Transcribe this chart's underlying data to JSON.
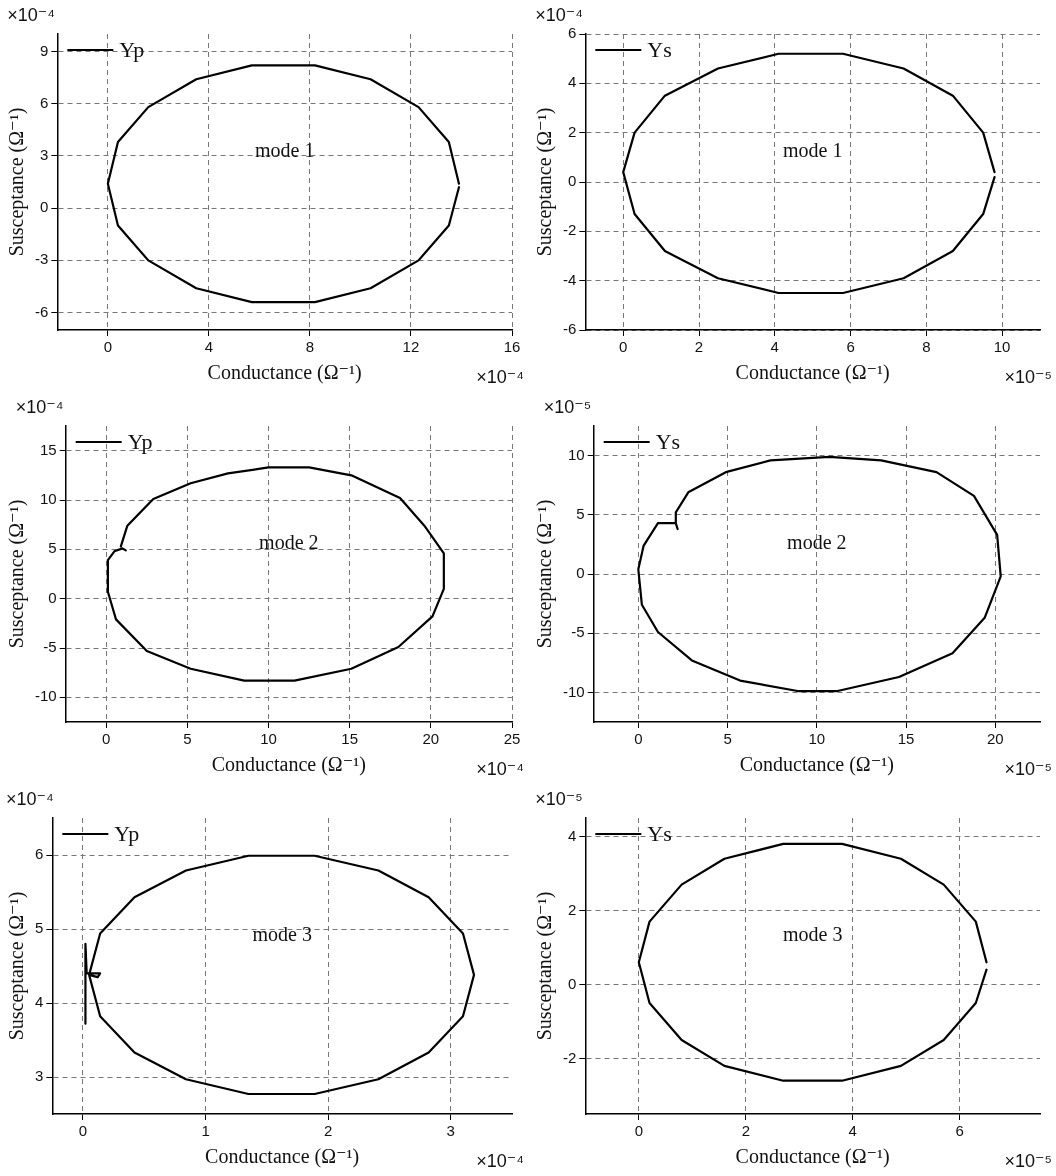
{
  "chart_data": [
    {
      "type": "line",
      "xlabel": "Conductance (Ω⁻¹)",
      "ylabel": "Susceptance (Ω⁻¹)",
      "annotations": [
        "×10⁻⁴",
        "×10⁻⁴",
        "mode 1"
      ],
      "xlim": [
        -2,
        16
      ],
      "ylim": [
        -7,
        10
      ],
      "xticks": [
        0,
        4,
        8,
        12,
        16
      ],
      "yticks": [
        -6,
        -3,
        0,
        3,
        6,
        9
      ],
      "grid": true,
      "legend": "top left",
      "series": [
        {
          "name": "Yp",
          "color": "#000000",
          "x": [
            13.9,
            13.5,
            12.3,
            10.4,
            8.2,
            5.7,
            3.5,
            1.6,
            0.4,
            0,
            0.4,
            1.6,
            3.5,
            5.7,
            8.2,
            10.4,
            12.3,
            13.5,
            13.9
          ],
          "values": [
            1.4,
            3.8,
            5.8,
            7.4,
            8.2,
            8.2,
            7.4,
            5.8,
            3.8,
            1.4,
            -1.0,
            -3.0,
            -4.6,
            -5.4,
            -5.4,
            -4.6,
            -3.0,
            -1.0,
            1.2
          ]
        }
      ]
    },
    {
      "type": "line",
      "xlabel": "Conductance (Ω⁻¹)",
      "ylabel": "Susceptance (Ω⁻¹)",
      "annotations": [
        "×10⁻⁴",
        "×10⁻⁵",
        "mode 1"
      ],
      "xlim": [
        -1,
        11
      ],
      "ylim": [
        -6,
        6
      ],
      "xticks": [
        0,
        2,
        4,
        6,
        8,
        10
      ],
      "yticks": [
        -6,
        -4,
        -2,
        0,
        2,
        4,
        6
      ],
      "grid": true,
      "legend": "top left",
      "series": [
        {
          "name": "Ys",
          "color": "#000000",
          "x": [
            9.8,
            9.5,
            8.7,
            7.4,
            5.8,
            4.1,
            2.5,
            1.1,
            0.3,
            0,
            0.3,
            1.1,
            2.5,
            4.1,
            5.8,
            7.4,
            8.7,
            9.5,
            9.8
          ],
          "values": [
            0.4,
            2.0,
            3.5,
            4.6,
            5.2,
            5.2,
            4.6,
            3.5,
            2.0,
            0.4,
            -1.3,
            -2.8,
            -3.9,
            -4.5,
            -4.5,
            -3.9,
            -2.8,
            -1.3,
            0.2
          ]
        }
      ]
    },
    {
      "type": "line",
      "xlabel": "Conductance (Ω⁻¹)",
      "ylabel": "Susceptance (Ω⁻¹)",
      "annotations": [
        "×10⁻⁴",
        "×10⁻⁴",
        "mode 2"
      ],
      "xlim": [
        -2.5,
        25
      ],
      "ylim": [
        -12.5,
        17.5
      ],
      "xticks": [
        0,
        5,
        10,
        15,
        20,
        25
      ],
      "yticks": [
        -10,
        -5,
        0,
        5,
        10,
        15
      ],
      "grid": true,
      "legend": "top left",
      "series": [
        {
          "name": "Yp",
          "color": "#000000",
          "x": [
            0.9,
            1.3,
            2.9,
            5.2,
            7.5,
            10.0,
            12.5,
            15.1,
            18.1,
            19.6,
            20.8,
            20.8,
            20.1,
            18.0,
            15.1,
            11.6,
            8.5,
            5.2,
            2.5,
            0.6,
            0.1,
            0.1,
            0.5,
            1.0,
            1.2
          ],
          "values": [
            5.3,
            7.4,
            10.1,
            11.7,
            12.7,
            13.3,
            13.3,
            12.5,
            10.2,
            7.4,
            4.6,
            1.0,
            -1.8,
            -4.9,
            -7.1,
            -8.3,
            -8.3,
            -7.1,
            -5.3,
            -2.1,
            0.7,
            3.9,
            4.8,
            5.1,
            4.9
          ]
        }
      ]
    },
    {
      "type": "line",
      "xlabel": "Conductance (Ω⁻¹)",
      "ylabel": "Susceptance (Ω⁻¹)",
      "annotations": [
        "×10⁻⁵",
        "×10⁻⁵",
        "mode 2"
      ],
      "xlim": [
        -2.5,
        22.5
      ],
      "ylim": [
        -12.5,
        12.5
      ],
      "xticks": [
        0,
        5,
        10,
        15,
        20
      ],
      "yticks": [
        -10,
        -5,
        0,
        5,
        10
      ],
      "grid": true,
      "legend": "top left",
      "series": [
        {
          "name": "Ys",
          "color": "#000000",
          "x": [
            2.2,
            2.1,
            1.1,
            0.3,
            0.0,
            0.2,
            1.1,
            3.0,
            5.7,
            9.0,
            11.1,
            14.6,
            17.6,
            19.4,
            20.3,
            20.1,
            18.8,
            16.7,
            13.6,
            10.7,
            7.4,
            4.9,
            2.8,
            2.1,
            2.1
          ],
          "values": [
            3.8,
            4.3,
            4.3,
            2.4,
            0.4,
            -2.6,
            -4.9,
            -7.3,
            -9.0,
            -9.9,
            -9.9,
            -8.7,
            -6.7,
            -3.7,
            -0.2,
            3.3,
            6.6,
            8.6,
            9.6,
            9.9,
            9.6,
            8.6,
            6.9,
            5.2,
            4.3
          ]
        }
      ]
    },
    {
      "type": "line",
      "xlabel": "Conductance (Ω⁻¹)",
      "ylabel": "Susceptance (Ω⁻¹)",
      "annotations": [
        "×10⁻⁴",
        "×10⁻⁴",
        "mode 3"
      ],
      "xlim": [
        -0.25,
        3.5
      ],
      "ylim": [
        2.5,
        6.5
      ],
      "xticks": [
        0,
        1,
        2,
        3
      ],
      "yticks": [
        3,
        4,
        5,
        6
      ],
      "grid": true,
      "legend": "top left",
      "series": [
        {
          "name": "Yp",
          "color": "#000000",
          "x": [
            0.02,
            0.02,
            0.03,
            0.14,
            0.12,
            0.05,
            0.14,
            0.42,
            0.84,
            1.35,
            1.89,
            2.41,
            2.82,
            3.1,
            3.19,
            3.1,
            2.82,
            2.41,
            1.89,
            1.35,
            0.84,
            0.42,
            0.14,
            0.05
          ],
          "values": [
            3.72,
            4.8,
            4.4,
            4.4,
            4.35,
            4.38,
            4.94,
            5.43,
            5.79,
            5.99,
            5.99,
            5.79,
            5.43,
            4.94,
            4.38,
            3.82,
            3.33,
            2.97,
            2.77,
            2.77,
            2.97,
            3.33,
            3.82,
            4.38
          ]
        }
      ]
    },
    {
      "type": "line",
      "xlabel": "Conductance (Ω⁻¹)",
      "ylabel": "Susceptance (Ω⁻¹)",
      "annotations": [
        "×10⁻⁵",
        "×10⁻⁵",
        "mode 3"
      ],
      "xlim": [
        -1,
        7.5
      ],
      "ylim": [
        -3.5,
        4.5
      ],
      "xticks": [
        0,
        2,
        4,
        6
      ],
      "yticks": [
        -2,
        0,
        2,
        4
      ],
      "grid": true,
      "legend": "top left",
      "series": [
        {
          "name": "Ys",
          "color": "#000000",
          "x": [
            6.5,
            6.3,
            5.7,
            4.9,
            3.8,
            2.7,
            1.6,
            0.8,
            0.2,
            0,
            0.2,
            0.8,
            1.6,
            2.7,
            3.8,
            4.9,
            5.7,
            6.3,
            6.5
          ],
          "values": [
            0.6,
            1.7,
            2.7,
            3.4,
            3.8,
            3.8,
            3.4,
            2.7,
            1.7,
            0.6,
            -0.5,
            -1.5,
            -2.2,
            -2.6,
            -2.6,
            -2.2,
            -1.5,
            -0.5,
            0.4
          ]
        }
      ]
    }
  ]
}
